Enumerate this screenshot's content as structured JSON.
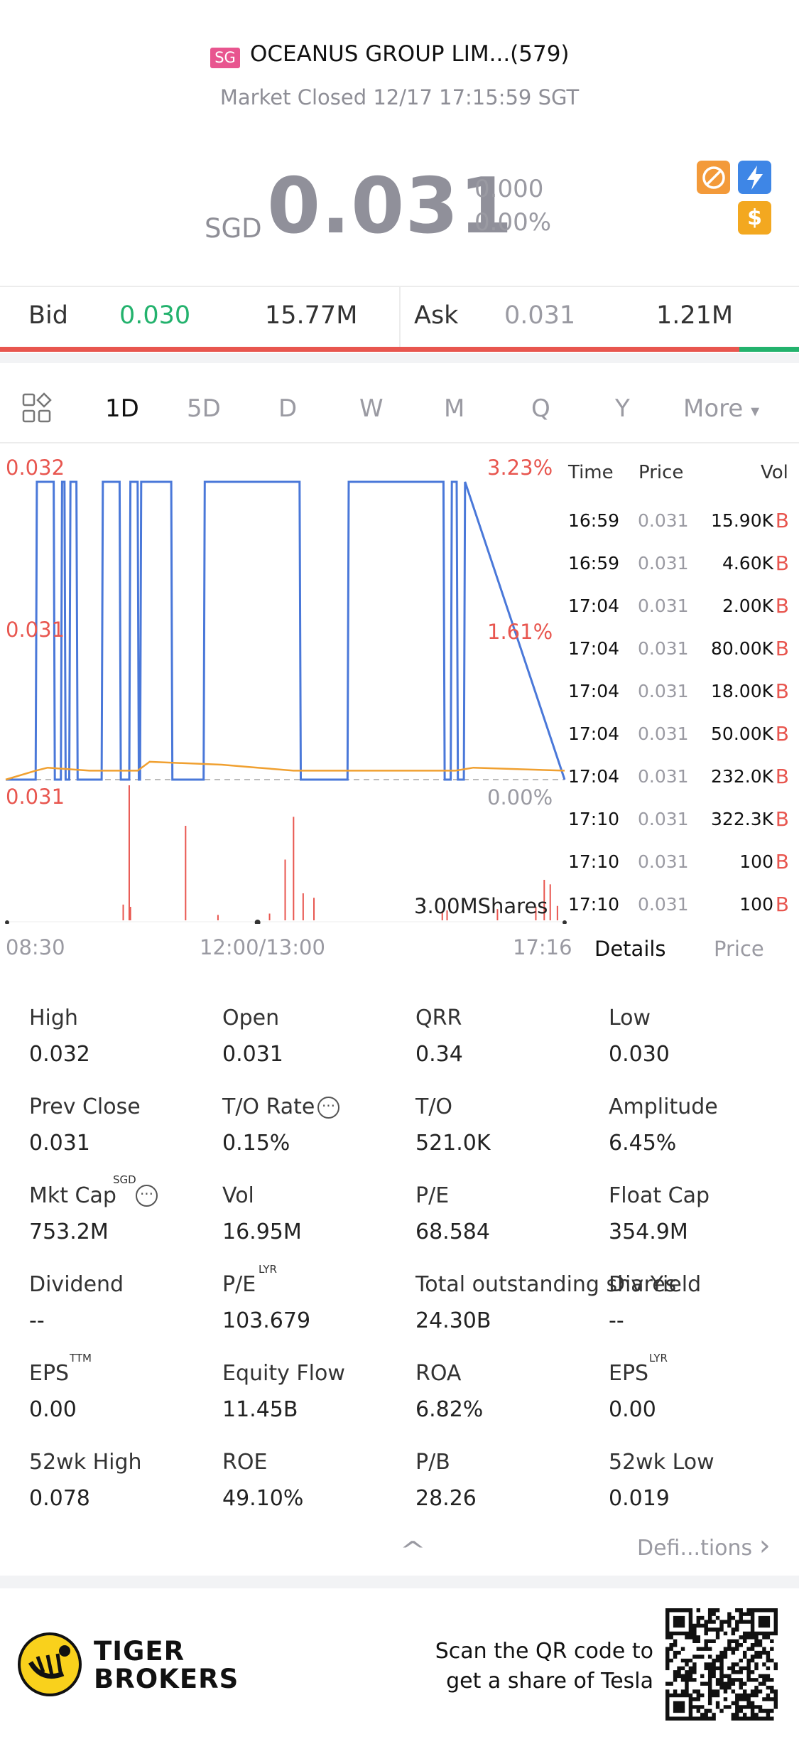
{
  "header": {
    "market_badge": "SG",
    "stock_name": "OCEANUS GROUP LIM...(579)",
    "market_status": "Market Closed 12/17 17:15:59 SGT",
    "currency": "SGD",
    "price": "0.031",
    "change": "0.000",
    "change_pct": "0.00%",
    "icons": [
      "no-short-icon",
      "flash-icon",
      "dollar-icon"
    ],
    "icon_dollar_glyph": "$"
  },
  "quote": {
    "bid_label": "Bid",
    "bid_price": "0.030",
    "bid_size": "15.77M",
    "ask_label": "Ask",
    "ask_price": "0.031",
    "ask_size": "1.21M",
    "bid_share": 0.925
  },
  "tabs": {
    "items": [
      "1D",
      "5D",
      "D",
      "W",
      "M",
      "Q",
      "Y"
    ],
    "active": "1D",
    "more_label": "More",
    "more_arrow": "▾"
  },
  "chart": {
    "y_top": "0.032",
    "y_mid": "0.031",
    "y_bottom": "0.031",
    "pct_top": "3.23%",
    "pct_mid": "1.61%",
    "pct_bottom": "0.00%",
    "volume_max": "3.00MShares",
    "x_start": "08:30",
    "x_mid": "12:00/13:00",
    "x_end": "17:16"
  },
  "chart_data": {
    "type": "line",
    "title": "",
    "xlabel": "",
    "ylabel": "",
    "ylim": [
      0.031,
      0.032
    ],
    "x_range": [
      "08:30",
      "17:16"
    ],
    "series": [
      {
        "color": "#4a78d9",
        "x": [
          "08:30",
          "08:55",
          "08:56",
          "09:10",
          "09:11",
          "09:16",
          "09:17",
          "09:19",
          "09:20",
          "09:23",
          "09:24",
          "09:29",
          "09:30",
          "09:50",
          "09:51",
          "10:05",
          "10:06",
          "10:13",
          "10:14",
          "10:20",
          "10:21",
          "10:22",
          "10:23",
          "10:48",
          "10:49",
          "11:15",
          "11:16",
          "13:35",
          "13:36",
          "14:15",
          "14:16",
          "15:35",
          "15:36",
          "15:41",
          "15:42",
          "15:46",
          "15:47",
          "15:52",
          "15:53",
          "17:16"
        ],
        "values": [
          0.031,
          0.031,
          0.032,
          0.032,
          0.031,
          0.031,
          0.032,
          0.032,
          0.031,
          0.031,
          0.032,
          0.032,
          0.031,
          0.031,
          0.032,
          0.032,
          0.031,
          0.031,
          0.032,
          0.032,
          0.031,
          0.031,
          0.032,
          0.032,
          0.031,
          0.031,
          0.032,
          0.032,
          0.031,
          0.031,
          0.032,
          0.032,
          0.031,
          0.031,
          0.032,
          0.032,
          0.031,
          0.031,
          0.032,
          0.031
        ]
      },
      {
        "color": "#f0a030",
        "x": [
          "08:30",
          "08:55",
          "09:05",
          "09:40",
          "10:20",
          "10:30",
          "11:30",
          "12:00/13:00",
          "13:30",
          "15:45",
          "16:00",
          "17:16"
        ],
        "values": [
          0.031,
          0.03103,
          0.03104,
          0.03103,
          0.03103,
          0.03106,
          0.03105,
          0.03104,
          0.03103,
          0.03103,
          0.03104,
          0.03103
        ]
      }
    ],
    "volume": {
      "max": "3.00MShares",
      "bars": [
        {
          "x": "10:08",
          "value": 0.35
        },
        {
          "x": "10:13",
          "value": 3.0
        },
        {
          "x": "10:14",
          "value": 0.3
        },
        {
          "x": "11:00",
          "value": 2.1
        },
        {
          "x": "11:27",
          "value": 0.12
        },
        {
          "x": "13:10",
          "value": 0.15
        },
        {
          "x": "13:23",
          "value": 1.35
        },
        {
          "x": "13:30",
          "value": 2.3
        },
        {
          "x": "13:38",
          "value": 0.6
        },
        {
          "x": "13:47",
          "value": 0.5
        },
        {
          "x": "15:34",
          "value": 0.2
        },
        {
          "x": "15:38",
          "value": 0.22
        },
        {
          "x": "16:20",
          "value": 0.25
        },
        {
          "x": "16:52",
          "value": 0.3
        },
        {
          "x": "16:59",
          "value": 0.9
        },
        {
          "x": "17:04",
          "value": 0.8
        },
        {
          "x": "17:10",
          "value": 0.32
        }
      ]
    }
  },
  "trades": {
    "headers": {
      "time": "Time",
      "price": "Price",
      "vol": "Vol"
    },
    "rows": [
      {
        "time": "16:59",
        "price": "0.031",
        "vol": "15.90K",
        "side": "B"
      },
      {
        "time": "16:59",
        "price": "0.031",
        "vol": "4.60K",
        "side": "B"
      },
      {
        "time": "17:04",
        "price": "0.031",
        "vol": "2.00K",
        "side": "B"
      },
      {
        "time": "17:04",
        "price": "0.031",
        "vol": "80.00K",
        "side": "B"
      },
      {
        "time": "17:04",
        "price": "0.031",
        "vol": "18.00K",
        "side": "B"
      },
      {
        "time": "17:04",
        "price": "0.031",
        "vol": "50.00K",
        "side": "B"
      },
      {
        "time": "17:04",
        "price": "0.031",
        "vol": "232.0K",
        "side": "B"
      },
      {
        "time": "17:10",
        "price": "0.031",
        "vol": "322.3K",
        "side": "B"
      },
      {
        "time": "17:10",
        "price": "0.031",
        "vol": "100",
        "side": "B"
      },
      {
        "time": "17:10",
        "price": "0.031",
        "vol": "100",
        "side": "B"
      }
    ],
    "tab_details": "Details",
    "tab_price": "Price"
  },
  "stats": [
    [
      {
        "label": "High",
        "value": "0.032"
      },
      {
        "label": "Open",
        "value": "0.031"
      },
      {
        "label": "QRR",
        "value": "0.34"
      },
      {
        "label": "Low",
        "value": "0.030"
      }
    ],
    [
      {
        "label": "Prev Close",
        "value": "0.031"
      },
      {
        "label": "T/O Rate",
        "value": "0.15%"
      },
      {
        "label": "T/O",
        "value": "521.0K"
      },
      {
        "label": "Amplitude",
        "value": "6.45%"
      }
    ],
    [
      {
        "label": "Mkt Cap",
        "value": "753.2M"
      },
      {
        "label": "Vol",
        "value": "16.95M"
      },
      {
        "label": "P/E",
        "value": "68.584"
      },
      {
        "label": "Float Cap",
        "value": "354.9M"
      }
    ],
    [
      {
        "label": "Dividend",
        "value": "--"
      },
      {
        "label": "P/E",
        "value": "103.679"
      },
      {
        "label": "Total outstanding shares",
        "value": "24.30B"
      },
      {
        "label": "Div Yield",
        "value": "--"
      }
    ],
    [
      {
        "label": "EPS",
        "value": "0.00"
      },
      {
        "label": "Equity Flow",
        "value": "11.45B"
      },
      {
        "label": "ROA",
        "value": "6.82%"
      },
      {
        "label": "EPS",
        "value": "0.00"
      }
    ],
    [
      {
        "label": "52wk High",
        "value": "0.078"
      },
      {
        "label": "ROE",
        "value": "49.10%"
      },
      {
        "label": "P/B",
        "value": "28.26"
      },
      {
        "label": "52wk Low",
        "value": "0.019"
      }
    ]
  ],
  "stat_sups": {
    "mkt_cap": "SGD",
    "pe_lyr": "LYR",
    "eps_ttm": "TTM",
    "eps_lyr": "LYR"
  },
  "stat_info_glyph": "···",
  "definitions": {
    "label": "Defi...tions",
    "arrow": "›",
    "collapse": "^"
  },
  "footer": {
    "brand_line1": "TIGER",
    "brand_line2": "BROKERS",
    "qr_line1": "Scan the QR code to",
    "qr_line2": "get a share of Tesla"
  },
  "colors": {
    "red": "#e8564f",
    "green": "#23b26d",
    "blue_line": "#4a78d9",
    "orange_line": "#f0a030",
    "gray_text": "#9a9aa2"
  }
}
